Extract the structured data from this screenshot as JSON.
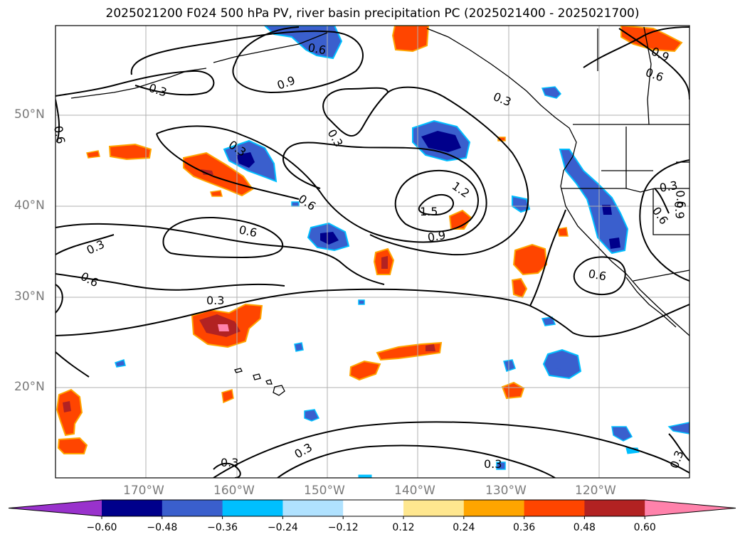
{
  "title": "2025021200 F024 500 hPa PV, river basin precipitation PC (2025021400 - 2025021700)",
  "lat_ticks": [
    "50°N",
    "40°N",
    "30°N",
    "20°N"
  ],
  "lon_ticks": [
    "170°W",
    "160°W",
    "150°W",
    "140°W",
    "130°W",
    "120°W"
  ],
  "contour_labels": [
    "0.3",
    "0.6",
    "0.9",
    "0.3",
    "0.3",
    "0.6",
    "0.9",
    "0.6",
    "0.3",
    "0.3",
    "0.6",
    "0.6",
    "1.2",
    "1.5",
    "0.9",
    "0.6",
    "0.3",
    "0.6",
    "0.6",
    "0.3",
    "0.6",
    "0.9",
    "0.3",
    "0.3",
    "0.3",
    "0.3"
  ],
  "colorbar": {
    "ticks": [
      "−0.60",
      "−0.48",
      "−0.36",
      "−0.24",
      "−0.12",
      "0.12",
      "0.24",
      "0.36",
      "0.48",
      "0.60"
    ],
    "colors": [
      "#9932cc",
      "#00008b",
      "#3a5fcd",
      "#00bfff",
      "#b0e2ff",
      "#ffffff",
      "#ffe78f",
      "#ffa500",
      "#ff4500",
      "#b22222",
      "#ff82ab"
    ]
  },
  "colors": {
    "contour": "#000000",
    "coast": "#000000",
    "grid": "#b0b0b0"
  }
}
